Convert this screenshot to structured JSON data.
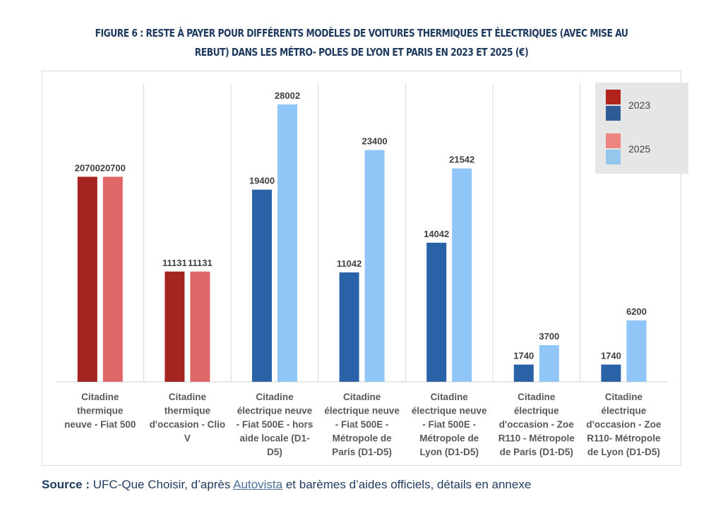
{
  "title": "FIGURE 6 : RESTE À PAYER POUR DIFFÉRENTS MODÈLES DE VOITURES THERMIQUES ET ÉLECTRIQUES (AVEC MISE AU REBUT) DANS LES MÉTRO- POLES DE LYON ET PARIS EN 2023 ET 2025 (€)",
  "source": {
    "label": "Source :",
    "text_before": "UFC-Que Choisir, d’après ",
    "link": "Autovista",
    "text_after": " et barèmes d’aides officiels, détails en annexe"
  },
  "chart_data": {
    "type": "bar",
    "title": "FIGURE 6 : RESTE À PAYER POUR DIFFÉRENTS MODÈLES DE VOITURES THERMIQUES ET ÉLECTRIQUES (AVEC MISE AU REBUT) DANS LES MÉTRO- POLES DE LYON ET PARIS EN 2023 ET 2025 (€)",
    "categories": [
      "Citadine\nthermique\nneuve - Fiat 500",
      "Citadine\nthermique\nd'occasion - Clio\nV",
      "Citadine\nélectrique neuve\n- Fiat 500E - hors\naide locale (D1-\nD5)",
      "Citadine\nélectrique neuve\n- Fiat 500E -\nMétropole de\nParis  (D1-D5)",
      "Citadine\nélectrique neuve\n- Fiat 500E -\nMétropole de\nLyon  (D1-D5)",
      "Citadine\nélectrique\nd'occasion - Zoe\nR110 - Métropole\nde Paris  (D1-D5)",
      "Citadine\nélectrique\nd'occasion -  Zoe\nR110- Métropole\nde Lyon  (D1-D5)"
    ],
    "series": [
      {
        "name": "2023",
        "values": [
          20700,
          11131,
          19400,
          11042,
          14042,
          1740,
          1740
        ]
      },
      {
        "name": "2025",
        "values": [
          20700,
          11131,
          28002,
          23400,
          21542,
          3700,
          6200
        ]
      }
    ],
    "data_labels": [
      "20700",
      "11131",
      "19400",
      "28002",
      "11042",
      "23400",
      "14042",
      "21542",
      "1740",
      "3700",
      "1740",
      "6200"
    ],
    "ylim": [
      0,
      30000
    ],
    "grid": false,
    "legend": {
      "placement": "top-right",
      "entries": [
        "2023",
        "2025"
      ]
    },
    "colors": {
      "thermique_2023": "#a32421",
      "thermique_2025": "#e06767",
      "electrique_2023": "#2a62a8",
      "electrique_2025": "#8fc6f7",
      "legend_2023_red": "#b0241d",
      "legend_2023_blue": "#2e5a96",
      "legend_2025_red": "#ef8580",
      "legend_2025_blue": "#94c7ec"
    },
    "thermique_categories": [
      0,
      1
    ]
  }
}
